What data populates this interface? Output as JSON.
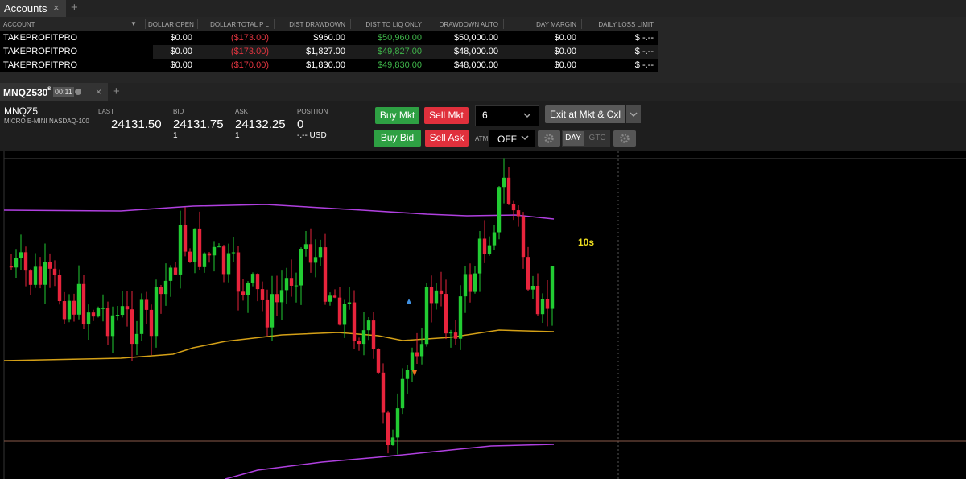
{
  "accounts_tab": {
    "title": "Accounts",
    "close": "×",
    "add": "+"
  },
  "accounts_table": {
    "sort_icon": "▼",
    "columns": [
      "ACCOUNT",
      "DOLLAR OPEN",
      "DOLLAR TOTAL P L",
      "DIST DRAWDOWN",
      "DIST TO LIQ ONLY",
      "DRAWDOWN AUTO",
      "DAY MARGIN",
      "DAILY LOSS LIMIT"
    ],
    "rows": [
      [
        "TAKEPROFITPRO",
        "$0.00",
        "($173.00)",
        "$960.00",
        "$50,960.00",
        "$50,000.00",
        "$0.00",
        "$ -.--"
      ],
      [
        "TAKEPROFITPRO",
        "$0.00",
        "($173.00)",
        "$1,827.00",
        "$49,827.00",
        "$48,000.00",
        "$0.00",
        "$ -.--"
      ],
      [
        "TAKEPROFITPRO",
        "$0.00",
        "($170.00)",
        "$1,830.00",
        "$49,830.00",
        "$48,000.00",
        "$0.00",
        "$ -.--"
      ]
    ]
  },
  "chart_tab": {
    "symbol": "MNQZ5",
    "interval": "30",
    "interval_unit": "s",
    "timer": "00:11",
    "close": "×",
    "add": "+"
  },
  "quote": {
    "symbol": "MNQZ5",
    "description": "MICRO E-MINI NASDAQ-100",
    "last": {
      "label": "LAST",
      "value": "24131.50"
    },
    "bid": {
      "label": "BID",
      "value": "24131.75",
      "size": "1"
    },
    "ask": {
      "label": "ASK",
      "value": "24132.25",
      "size": "1"
    },
    "position": {
      "label": "POSITION",
      "value": "0",
      "pnl": "-.-- USD"
    }
  },
  "order": {
    "buy_mkt": "Buy Mkt",
    "sell_mkt": "Sell Mkt",
    "quantity": "6",
    "exit": "Exit at Mkt & Cxl",
    "buy_bid": "Buy Bid",
    "sell_ask": "Sell Ask",
    "atm_label": "ATM",
    "atm_value": "OFF",
    "tif_day": "DAY",
    "tif_gtc": "GTC"
  },
  "chart": {
    "overlay_label": "10s"
  }
}
